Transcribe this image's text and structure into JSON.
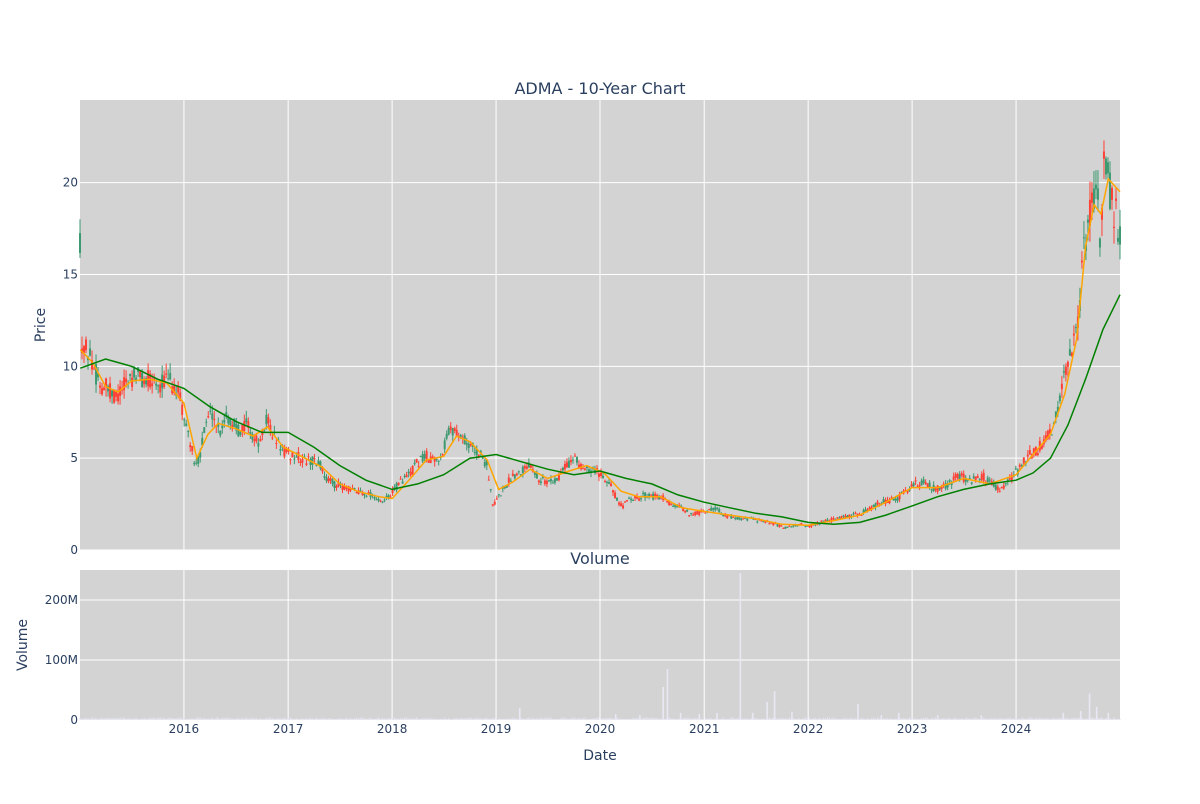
{
  "chart_data": [
    {
      "type": "candlestick",
      "title": "ADMA - 10-Year Chart",
      "ylabel": "Price",
      "xlim": [
        "2015-01-01",
        "2024-12-31"
      ],
      "ylim": [
        0,
        24.5
      ],
      "y_ticks": [
        0,
        5,
        10,
        15,
        20
      ],
      "grid": true,
      "legend": "none",
      "price_path": [
        [
          "2015-01-02",
          11.2
        ],
        [
          "2015-01-20",
          11.0
        ],
        [
          "2015-02-10",
          10.4
        ],
        [
          "2015-02-25",
          9.6
        ],
        [
          "2015-03-15",
          9.0
        ],
        [
          "2015-04-05",
          8.8
        ],
        [
          "2015-04-25",
          8.4
        ],
        [
          "2015-05-15",
          8.5
        ],
        [
          "2015-06-05",
          8.9
        ],
        [
          "2015-06-25",
          9.4
        ],
        [
          "2015-07-20",
          9.5
        ],
        [
          "2015-08-15",
          9.2
        ],
        [
          "2015-09-10",
          9.3
        ],
        [
          "2015-10-05",
          9.1
        ],
        [
          "2015-11-01",
          9.2
        ],
        [
          "2015-11-25",
          9.0
        ],
        [
          "2015-12-15",
          8.4
        ],
        [
          "2016-01-05",
          7.0
        ],
        [
          "2016-01-25",
          5.8
        ],
        [
          "2016-02-10",
          4.4
        ],
        [
          "2016-03-01",
          5.5
        ],
        [
          "2016-03-20",
          7.0
        ],
        [
          "2016-04-10",
          7.5
        ],
        [
          "2016-05-05",
          6.4
        ],
        [
          "2016-05-25",
          7.3
        ],
        [
          "2016-06-20",
          6.9
        ],
        [
          "2016-07-15",
          6.5
        ],
        [
          "2016-08-10",
          7.0
        ],
        [
          "2016-08-30",
          6.1
        ],
        [
          "2016-09-25",
          5.8
        ],
        [
          "2016-10-20",
          7.2
        ],
        [
          "2016-11-10",
          6.2
        ],
        [
          "2016-12-05",
          5.6
        ],
        [
          "2017-01-01",
          5.2
        ],
        [
          "2017-02-01",
          5.1
        ],
        [
          "2017-03-01",
          4.9
        ],
        [
          "2017-04-01",
          4.8
        ],
        [
          "2017-04-25",
          4.6
        ],
        [
          "2017-05-15",
          3.9
        ],
        [
          "2017-06-10",
          3.6
        ],
        [
          "2017-07-05",
          3.5
        ],
        [
          "2017-08-01",
          3.3
        ],
        [
          "2017-09-01",
          3.2
        ],
        [
          "2017-10-01",
          3.1
        ],
        [
          "2017-11-01",
          2.9
        ],
        [
          "2017-11-25",
          2.5
        ],
        [
          "2017-12-20",
          2.9
        ],
        [
          "2018-01-15",
          3.4
        ],
        [
          "2018-02-10",
          3.9
        ],
        [
          "2018-03-05",
          4.1
        ],
        [
          "2018-04-01",
          4.8
        ],
        [
          "2018-05-01",
          5.1
        ],
        [
          "2018-06-01",
          4.9
        ],
        [
          "2018-06-25",
          5.2
        ],
        [
          "2018-07-15",
          6.3
        ],
        [
          "2018-08-10",
          6.6
        ],
        [
          "2018-09-01",
          6.2
        ],
        [
          "2018-10-01",
          5.6
        ],
        [
          "2018-11-01",
          5.3
        ],
        [
          "2018-12-01",
          4.6
        ],
        [
          "2018-12-20",
          2.4
        ],
        [
          "2019-01-10",
          2.9
        ],
        [
          "2019-02-01",
          3.4
        ],
        [
          "2019-03-01",
          4.1
        ],
        [
          "2019-04-01",
          4.3
        ],
        [
          "2019-05-01",
          4.8
        ],
        [
          "2019-06-01",
          3.9
        ],
        [
          "2019-07-01",
          3.7
        ],
        [
          "2019-08-01",
          3.8
        ],
        [
          "2019-09-01",
          4.6
        ],
        [
          "2019-10-01",
          4.9
        ],
        [
          "2019-11-01",
          4.6
        ],
        [
          "2019-12-01",
          4.4
        ],
        [
          "2020-01-01",
          4.2
        ],
        [
          "2020-02-01",
          3.8
        ],
        [
          "2020-03-01",
          2.7
        ],
        [
          "2020-03-20",
          2.3
        ],
        [
          "2020-04-10",
          2.9
        ],
        [
          "2020-05-10",
          2.8
        ],
        [
          "2020-06-10",
          3.0
        ],
        [
          "2020-07-10",
          2.9
        ],
        [
          "2020-08-10",
          2.8
        ],
        [
          "2020-09-10",
          2.4
        ],
        [
          "2020-10-10",
          2.3
        ],
        [
          "2020-11-10",
          2.0
        ],
        [
          "2020-12-10",
          2.0
        ],
        [
          "2021-01-10",
          2.1
        ],
        [
          "2021-02-10",
          2.3
        ],
        [
          "2021-03-10",
          1.9
        ],
        [
          "2021-04-10",
          1.8
        ],
        [
          "2021-05-10",
          1.7
        ],
        [
          "2021-06-10",
          1.7
        ],
        [
          "2021-07-10",
          1.6
        ],
        [
          "2021-08-10",
          1.5
        ],
        [
          "2021-09-10",
          1.4
        ],
        [
          "2021-10-10",
          1.2
        ],
        [
          "2021-11-10",
          1.3
        ],
        [
          "2021-12-10",
          1.4
        ],
        [
          "2022-01-10",
          1.3
        ],
        [
          "2022-02-10",
          1.5
        ],
        [
          "2022-03-10",
          1.6
        ],
        [
          "2022-04-10",
          1.7
        ],
        [
          "2022-05-10",
          1.8
        ],
        [
          "2022-06-10",
          1.9
        ],
        [
          "2022-07-10",
          2.0
        ],
        [
          "2022-08-10",
          2.3
        ],
        [
          "2022-09-10",
          2.6
        ],
        [
          "2022-10-10",
          2.7
        ],
        [
          "2022-11-10",
          2.8
        ],
        [
          "2022-12-10",
          3.2
        ],
        [
          "2023-01-10",
          3.6
        ],
        [
          "2023-02-10",
          3.7
        ],
        [
          "2023-03-10",
          3.4
        ],
        [
          "2023-04-10",
          3.3
        ],
        [
          "2023-05-10",
          3.6
        ],
        [
          "2023-06-10",
          4.0
        ],
        [
          "2023-07-10",
          3.9
        ],
        [
          "2023-08-10",
          3.8
        ],
        [
          "2023-09-10",
          4.0
        ],
        [
          "2023-10-10",
          3.6
        ],
        [
          "2023-11-10",
          3.3
        ],
        [
          "2023-12-10",
          3.8
        ],
        [
          "2024-01-10",
          4.4
        ],
        [
          "2024-02-10",
          5.1
        ],
        [
          "2024-03-10",
          5.3
        ],
        [
          "2024-04-10",
          6.0
        ],
        [
          "2024-05-10",
          6.5
        ],
        [
          "2024-06-10",
          8.8
        ],
        [
          "2024-07-10",
          10.5
        ],
        [
          "2024-08-05",
          12.0
        ],
        [
          "2024-08-25",
          16.5
        ],
        [
          "2024-09-10",
          17.5
        ],
        [
          "2024-09-25",
          19.0
        ],
        [
          "2024-10-10",
          19.8
        ],
        [
          "2024-10-25",
          16.2
        ],
        [
          "2024-11-05",
          22.3
        ],
        [
          "2024-11-15",
          21.0
        ],
        [
          "2024-11-25",
          19.5
        ],
        [
          "2024-12-10",
          18.5
        ],
        [
          "2024-12-31",
          17.2
        ]
      ],
      "moving_averages": [
        {
          "color": "#ffa500",
          "points": [
            [
              "2015-01-02",
              10.9
            ],
            [
              "2015-02-15",
              10.2
            ],
            [
              "2015-04-01",
              8.9
            ],
            [
              "2015-05-15",
              8.6
            ],
            [
              "2015-07-01",
              9.2
            ],
            [
              "2015-09-01",
              9.3
            ],
            [
              "2015-11-01",
              9.1
            ],
            [
              "2016-01-01",
              8.0
            ],
            [
              "2016-02-15",
              5.0
            ],
            [
              "2016-03-25",
              6.3
            ],
            [
              "2016-05-01",
              6.9
            ],
            [
              "2016-07-01",
              6.6
            ],
            [
              "2016-09-01",
              6.2
            ],
            [
              "2016-10-20",
              6.7
            ],
            [
              "2016-12-15",
              5.6
            ],
            [
              "2017-03-01",
              5.0
            ],
            [
              "2017-05-01",
              4.5
            ],
            [
              "2017-07-01",
              3.6
            ],
            [
              "2017-09-01",
              3.2
            ],
            [
              "2017-11-15",
              2.9
            ],
            [
              "2018-01-01",
              2.8
            ],
            [
              "2018-03-01",
              3.8
            ],
            [
              "2018-05-01",
              4.9
            ],
            [
              "2018-07-01",
              5.1
            ],
            [
              "2018-08-15",
              6.2
            ],
            [
              "2018-10-01",
              5.9
            ],
            [
              "2018-12-01",
              4.9
            ],
            [
              "2019-01-10",
              3.3
            ],
            [
              "2019-03-01",
              3.7
            ],
            [
              "2019-05-01",
              4.4
            ],
            [
              "2019-07-01",
              3.9
            ],
            [
              "2019-09-15",
              4.3
            ],
            [
              "2019-11-15",
              4.6
            ],
            [
              "2020-01-15",
              4.2
            ],
            [
              "2020-03-15",
              3.2
            ],
            [
              "2020-05-15",
              2.9
            ],
            [
              "2020-08-01",
              2.9
            ],
            [
              "2020-10-15",
              2.3
            ],
            [
              "2021-01-01",
              2.1
            ],
            [
              "2021-04-01",
              1.9
            ],
            [
              "2021-07-01",
              1.7
            ],
            [
              "2021-10-01",
              1.4
            ],
            [
              "2022-01-01",
              1.35
            ],
            [
              "2022-04-01",
              1.6
            ],
            [
              "2022-07-01",
              1.9
            ],
            [
              "2022-10-01",
              2.6
            ],
            [
              "2023-01-01",
              3.4
            ],
            [
              "2023-04-01",
              3.4
            ],
            [
              "2023-07-01",
              3.9
            ],
            [
              "2023-10-01",
              3.6
            ],
            [
              "2024-01-01",
              4.1
            ],
            [
              "2024-03-01",
              5.2
            ],
            [
              "2024-05-01",
              6.3
            ],
            [
              "2024-06-20",
              8.5
            ],
            [
              "2024-08-01",
              11.5
            ],
            [
              "2024-09-01",
              16.5
            ],
            [
              "2024-10-01",
              18.8
            ],
            [
              "2024-10-25",
              18.3
            ],
            [
              "2024-11-20",
              20.2
            ],
            [
              "2024-12-31",
              19.5
            ]
          ]
        },
        {
          "color": "#008000",
          "points": [
            [
              "2015-01-02",
              9.9
            ],
            [
              "2015-04-01",
              10.4
            ],
            [
              "2015-07-01",
              10.0
            ],
            [
              "2015-10-01",
              9.3
            ],
            [
              "2016-01-01",
              8.8
            ],
            [
              "2016-04-01",
              7.8
            ],
            [
              "2016-07-01",
              7.0
            ],
            [
              "2016-10-01",
              6.4
            ],
            [
              "2017-01-01",
              6.4
            ],
            [
              "2017-04-01",
              5.6
            ],
            [
              "2017-07-01",
              4.6
            ],
            [
              "2017-10-01",
              3.8
            ],
            [
              "2018-01-01",
              3.3
            ],
            [
              "2018-04-01",
              3.6
            ],
            [
              "2018-07-01",
              4.1
            ],
            [
              "2018-10-01",
              5.0
            ],
            [
              "2019-01-01",
              5.2
            ],
            [
              "2019-04-01",
              4.8
            ],
            [
              "2019-07-01",
              4.4
            ],
            [
              "2019-10-01",
              4.1
            ],
            [
              "2020-01-01",
              4.3
            ],
            [
              "2020-04-01",
              3.9
            ],
            [
              "2020-07-01",
              3.6
            ],
            [
              "2020-10-01",
              3.0
            ],
            [
              "2021-01-01",
              2.6
            ],
            [
              "2021-04-01",
              2.3
            ],
            [
              "2021-07-01",
              2.0
            ],
            [
              "2021-10-01",
              1.8
            ],
            [
              "2022-01-01",
              1.5
            ],
            [
              "2022-04-01",
              1.4
            ],
            [
              "2022-07-01",
              1.5
            ],
            [
              "2022-10-01",
              1.9
            ],
            [
              "2023-01-01",
              2.4
            ],
            [
              "2023-04-01",
              2.9
            ],
            [
              "2023-07-01",
              3.3
            ],
            [
              "2023-10-01",
              3.6
            ],
            [
              "2024-01-01",
              3.8
            ],
            [
              "2024-03-01",
              4.2
            ],
            [
              "2024-05-01",
              5.0
            ],
            [
              "2024-07-01",
              6.8
            ],
            [
              "2024-09-01",
              9.3
            ],
            [
              "2024-11-01",
              12.0
            ],
            [
              "2024-12-31",
              13.9
            ]
          ]
        }
      ]
    },
    {
      "type": "bar",
      "title": "Volume",
      "ylabel": "Volume",
      "xlabel": "Date",
      "ylim": [
        0,
        250000000
      ],
      "y_ticks": [
        {
          "value": 0,
          "label": "0"
        },
        {
          "value": 100000000,
          "label": "100M"
        },
        {
          "value": 200000000,
          "label": "200M"
        }
      ],
      "x_ticks": [
        "2016",
        "2017",
        "2018",
        "2019",
        "2020",
        "2021",
        "2022",
        "2023",
        "2024"
      ],
      "spikes": [
        [
          "2019-03-25",
          20000000
        ],
        [
          "2020-02-25",
          10000000
        ],
        [
          "2020-05-20",
          8000000
        ],
        [
          "2020-08-10",
          55000000
        ],
        [
          "2020-08-25",
          85000000
        ],
        [
          "2020-10-10",
          12000000
        ],
        [
          "2020-12-15",
          10000000
        ],
        [
          "2021-02-15",
          12000000
        ],
        [
          "2021-05-08",
          245000000
        ],
        [
          "2021-06-20",
          12000000
        ],
        [
          "2021-08-10",
          30000000
        ],
        [
          "2021-09-05",
          48000000
        ],
        [
          "2021-11-05",
          14000000
        ],
        [
          "2022-06-25",
          27000000
        ],
        [
          "2022-09-15",
          8000000
        ],
        [
          "2022-11-15",
          12000000
        ],
        [
          "2023-04-01",
          8000000
        ],
        [
          "2023-09-01",
          8000000
        ],
        [
          "2024-06-15",
          12000000
        ],
        [
          "2024-08-15",
          15000000
        ],
        [
          "2024-09-15",
          44000000
        ],
        [
          "2024-10-10",
          22000000
        ],
        [
          "2024-11-20",
          12000000
        ]
      ]
    }
  ]
}
